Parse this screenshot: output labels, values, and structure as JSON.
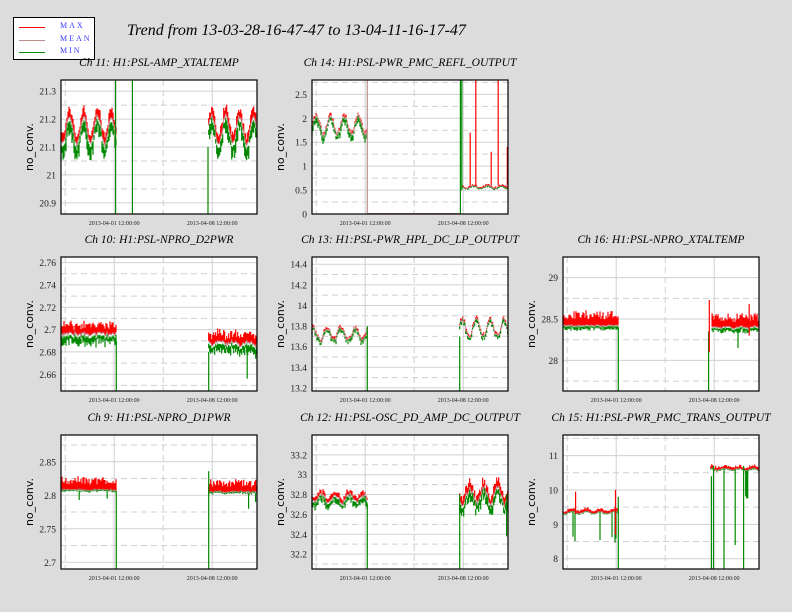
{
  "title": "Trend from 13-03-28-16-47-47 to 13-04-11-16-17-47",
  "legend": [
    {
      "label": "MAX",
      "color": "#ff0000"
    },
    {
      "label": "MEAN",
      "color": "#bc8f8f"
    },
    {
      "label": "MIN",
      "color": "#008800"
    }
  ],
  "chart_data": [
    {
      "type": "line",
      "title": "Ch 11: H1:PSL-AMP_XTALTEMP",
      "ylabel": "no_conv.",
      "xlim": [
        0,
        14
      ],
      "ylim": [
        20.86,
        21.34
      ],
      "yticks": [
        20.9,
        21,
        21.1,
        21.2,
        21.3
      ],
      "ytick_labels": [
        "20.9",
        "21",
        "21.1",
        "21.2",
        "21.3"
      ],
      "xticks": [
        {
          "t": 3.8,
          "label": "2013-04-01 12:00:00"
        },
        {
          "t": 10.8,
          "label": "2013-04-08 12:00:00"
        }
      ],
      "segments": [
        {
          "t": [
            0,
            3.95
          ],
          "mean": 21.16,
          "wobble": 0.05,
          "max_off": 0.03,
          "min_off": 0.05,
          "noise": 0.02
        },
        {
          "t": [
            10.55,
            14
          ],
          "mean": 21.16,
          "wobble": 0.05,
          "max_off": 0.03,
          "min_off": 0.05,
          "noise": 0.02
        }
      ],
      "spikes": [
        {
          "t": 3.9,
          "from": 20.86,
          "to": 21.34
        },
        {
          "t": 5.1,
          "from": 20.86,
          "to": 21.34
        },
        {
          "t": 10.5,
          "from": 20.86,
          "to": 21.1
        }
      ]
    },
    {
      "type": "line",
      "title": "Ch 14: H1:PSL-PWR_PMC_REFL_OUTPUT",
      "ylabel": "no_conv.",
      "xlim": [
        0,
        14
      ],
      "ylim": [
        0,
        2.8
      ],
      "yticks": [
        0,
        0.5,
        1,
        1.5,
        2,
        2.5
      ],
      "ytick_labels": [
        "0",
        "0.5",
        "1",
        "1.5",
        "2",
        "2.5"
      ],
      "xticks": [
        {
          "t": 3.8,
          "label": "2013-04-01 12:00:00"
        },
        {
          "t": 10.8,
          "label": "2013-04-08 12:00:00"
        }
      ],
      "segments": [
        {
          "t": [
            0,
            3.95
          ],
          "mean": 1.85,
          "wobble": 0.2,
          "max_off": 0.05,
          "min_off": 0.12,
          "noise": 0.08
        },
        {
          "t": [
            3.95,
            10.6
          ],
          "mean": 0.01,
          "wobble": 0,
          "max_off": 0.005,
          "min_off": 0.005,
          "noise": 0.002
        },
        {
          "t": [
            10.75,
            14
          ],
          "mean": 0.56,
          "wobble": 0.03,
          "max_off": 0.03,
          "min_off": 0.02,
          "noise": 0.02
        }
      ],
      "spikes": [
        {
          "t": 3.95,
          "from": 0,
          "to": 2.8,
          "series": "mean"
        },
        {
          "t": 10.6,
          "from": 0,
          "to": 2.8
        },
        {
          "t": 10.7,
          "from": 0.5,
          "to": 2.8
        },
        {
          "t": 11.7,
          "from": 0.6,
          "to": 2.8,
          "series": "max"
        },
        {
          "t": 13.3,
          "from": 0.6,
          "to": 2.8,
          "series": "max"
        },
        {
          "t": 11.3,
          "from": 0.6,
          "to": 1.7,
          "series": "max"
        },
        {
          "t": 12.8,
          "from": 0.6,
          "to": 1.3,
          "series": "max"
        },
        {
          "t": 13.95,
          "from": 0.6,
          "to": 1.4,
          "series": "max"
        }
      ]
    },
    {
      "type": "line",
      "title": "Ch 10: H1:PSL-NPRO_D2PWR",
      "ylabel": "no_conv.",
      "xlim": [
        0,
        14
      ],
      "ylim": [
        2.645,
        2.765
      ],
      "yticks": [
        2.66,
        2.68,
        2.7,
        2.72,
        2.74,
        2.76
      ],
      "ytick_labels": [
        "2.66",
        "2.68",
        "2.7",
        "2.72",
        "2.74",
        "2.76"
      ],
      "xticks": [
        {
          "t": 3.8,
          "label": "2013-04-01 12:00:00"
        },
        {
          "t": 10.8,
          "label": "2013-04-08 12:00:00"
        }
      ],
      "segments": [
        {
          "t": [
            0,
            3.95
          ],
          "mean": 2.696,
          "wobble": 0,
          "max_off": 0.008,
          "min_off": 0.008,
          "noise": 0.004
        },
        {
          "t": [
            10.55,
            14
          ],
          "mean": 2.688,
          "wobble": 0.002,
          "max_off": 0.008,
          "min_off": 0.008,
          "noise": 0.004
        }
      ],
      "spikes": [
        {
          "t": 3.95,
          "from": 2.645,
          "to": 2.69
        },
        {
          "t": 10.55,
          "from": 2.645,
          "to": 2.68
        },
        {
          "t": 13.3,
          "from": 2.656,
          "to": 2.68
        }
      ]
    },
    {
      "type": "line",
      "title": "Ch 13: H1:PSL-PWR_HPL_DC_LP_OUTPUT",
      "ylabel": "no_conv.",
      "xlim": [
        0,
        14
      ],
      "ylim": [
        13.17,
        14.47
      ],
      "yticks": [
        13.2,
        13.4,
        13.6,
        13.8,
        14,
        14.2,
        14.4
      ],
      "ytick_labels": [
        "13.2",
        "13.4",
        "13.6",
        "13.8",
        "14",
        "14.2",
        "14.4"
      ],
      "xticks": [
        {
          "t": 3.8,
          "label": "2013-04-01 12:00:00"
        },
        {
          "t": 10.8,
          "label": "2013-04-08 12:00:00"
        }
      ],
      "segments": [
        {
          "t": [
            0,
            3.95
          ],
          "mean": 13.72,
          "wobble": 0.06,
          "max_off": 0.02,
          "min_off": 0.03,
          "noise": 0.04
        },
        {
          "t": [
            10.55,
            14
          ],
          "mean": 13.78,
          "wobble": 0.08,
          "max_off": 0.02,
          "min_off": 0.03,
          "noise": 0.05
        }
      ],
      "spikes": [
        {
          "t": 3.95,
          "from": 13.17,
          "to": 13.8
        },
        {
          "t": 10.55,
          "from": 13.17,
          "to": 13.7
        }
      ]
    },
    {
      "type": "line",
      "title": "Ch 16: H1:PSL-NPRO_XTALTEMP",
      "ylabel": "no_conv.",
      "xlim": [
        0,
        14
      ],
      "ylim": [
        27.63,
        29.25
      ],
      "yticks": [
        28,
        28.5,
        29
      ],
      "ytick_labels": [
        "28",
        "28.5",
        "29"
      ],
      "xticks": [
        {
          "t": 3.8,
          "label": "2013-04-01 12:00:00"
        },
        {
          "t": 10.8,
          "label": "2013-04-08 12:00:00"
        }
      ],
      "segments": [
        {
          "t": [
            0,
            3.95
          ],
          "mean": 28.42,
          "wobble": 0,
          "max_off": 0.13,
          "min_off": 0.04,
          "noise": 0.02
        },
        {
          "t": [
            10.65,
            14
          ],
          "mean": 28.4,
          "wobble": 0.01,
          "max_off": 0.12,
          "min_off": 0.05,
          "noise": 0.02
        }
      ],
      "spikes": [
        {
          "t": 3.95,
          "from": 27.63,
          "to": 28.4
        },
        {
          "t": 10.4,
          "from": 27.63,
          "to": 28.35
        },
        {
          "t": 10.45,
          "from": 28.1,
          "to": 28.73,
          "series": "max"
        },
        {
          "t": 12.5,
          "from": 28.15,
          "to": 28.38
        },
        {
          "t": 13.3,
          "from": 28.3,
          "to": 28.68,
          "series": "max"
        }
      ]
    },
    {
      "type": "line",
      "title": "Ch 9: H1:PSL-NPRO_D1PWR",
      "ylabel": "no_conv.",
      "xlim": [
        0,
        14
      ],
      "ylim": [
        2.69,
        2.89
      ],
      "yticks": [
        2.7,
        2.75,
        2.8,
        2.85
      ],
      "ytick_labels": [
        "2.7",
        "2.75",
        "2.8",
        "2.85"
      ],
      "xticks": [
        {
          "t": 3.8,
          "label": "2013-04-01 12:00:00"
        },
        {
          "t": 10.8,
          "label": "2013-04-08 12:00:00"
        }
      ],
      "segments": [
        {
          "t": [
            0,
            3.95
          ],
          "mean": 2.808,
          "wobble": 0,
          "max_off": 0.014,
          "min_off": 0.002,
          "noise": 0.003
        },
        {
          "t": [
            10.55,
            14
          ],
          "mean": 2.805,
          "wobble": 0,
          "max_off": 0.013,
          "min_off": 0.002,
          "noise": 0.003
        }
      ],
      "spikes": [
        {
          "t": 3.95,
          "from": 2.69,
          "to": 2.806
        },
        {
          "t": 10.55,
          "from": 2.69,
          "to": 2.836
        },
        {
          "t": 1.3,
          "from": 2.793,
          "to": 2.806
        },
        {
          "t": 3.3,
          "from": 2.795,
          "to": 2.806
        },
        {
          "t": 13.4,
          "from": 2.78,
          "to": 2.803
        },
        {
          "t": 13.9,
          "from": 2.79,
          "to": 2.803
        }
      ]
    },
    {
      "type": "line",
      "title": "Ch 12: H1:PSL-OSC_PD_AMP_DC_OUTPUT",
      "ylabel": "no_conv.",
      "xlim": [
        0,
        14
      ],
      "ylim": [
        32.05,
        33.4
      ],
      "yticks": [
        32.2,
        32.4,
        32.6,
        32.8,
        33,
        33.2
      ],
      "ytick_labels": [
        "32.2",
        "32.4",
        "32.6",
        "32.8",
        "33",
        "33.2"
      ],
      "xticks": [
        {
          "t": 3.8,
          "label": "2013-04-01 12:00:00"
        },
        {
          "t": 10.8,
          "label": "2013-04-08 12:00:00"
        }
      ],
      "segments": [
        {
          "t": [
            0,
            3.95
          ],
          "mean": 32.76,
          "wobble": 0.04,
          "max_off": 0.04,
          "min_off": 0.06,
          "noise": 0.04
        },
        {
          "t": [
            10.55,
            14
          ],
          "mean": 32.78,
          "wobble": 0.08,
          "max_off": 0.07,
          "min_off": 0.09,
          "noise": 0.08
        }
      ],
      "spikes": [
        {
          "t": 3.95,
          "from": 32.05,
          "to": 32.7
        },
        {
          "t": 10.55,
          "from": 32.05,
          "to": 32.8
        },
        {
          "t": 13.9,
          "from": 32.38,
          "to": 32.8
        }
      ]
    },
    {
      "type": "line",
      "title": "Ch 15: H1:PSL-PWR_PMC_TRANS_OUTPUT",
      "ylabel": "no_conv.",
      "xlim": [
        0,
        14
      ],
      "ylim": [
        7.7,
        11.6
      ],
      "yticks": [
        8,
        9,
        10,
        11
      ],
      "ytick_labels": [
        "8",
        "9",
        "10",
        "11"
      ],
      "xticks": [
        {
          "t": 3.8,
          "label": "2013-04-01 12:00:00"
        },
        {
          "t": 10.8,
          "label": "2013-04-08 12:00:00"
        }
      ],
      "segments": [
        {
          "t": [
            0,
            3.95
          ],
          "mean": 9.34,
          "wobble": 0.03,
          "max_off": 0.08,
          "min_off": 0.02,
          "noise": 0.04,
          "dropouts": 8.4
        },
        {
          "t": [
            10.55,
            14
          ],
          "mean": 10.6,
          "wobble": 0.03,
          "max_off": 0.08,
          "min_off": 0.02,
          "noise": 0.04,
          "dropouts": 9.6
        }
      ],
      "spikes": [
        {
          "t": 3.95,
          "from": 7.7,
          "to": 9.8
        },
        {
          "t": 3.75,
          "from": 8.7,
          "to": 10,
          "series": "max"
        },
        {
          "t": 0.9,
          "from": 9.3,
          "to": 9.95,
          "series": "max"
        },
        {
          "t": 10.6,
          "from": 7.7,
          "to": 10.4
        },
        {
          "t": 10.75,
          "from": 7.7,
          "to": 10.7
        },
        {
          "t": 11.5,
          "from": 7.7,
          "to": 10.6
        },
        {
          "t": 12.9,
          "from": 7.7,
          "to": 10.7
        },
        {
          "t": 12.3,
          "from": 8.4,
          "to": 10.6
        }
      ]
    }
  ]
}
